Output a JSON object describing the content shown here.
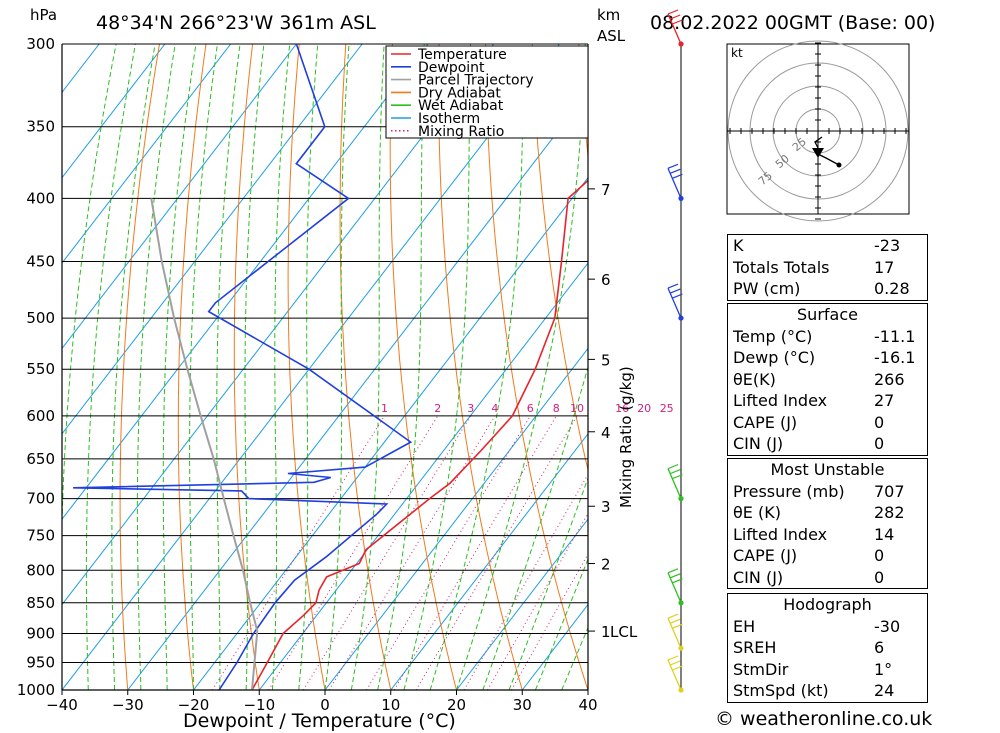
{
  "header": {
    "hpa_label": "hPa",
    "location": "48°34'N 266°23'W 361m ASL",
    "km_label": "km",
    "asl_label": "ASL",
    "datetime": "08.02.2022 00GMT (Base: 00)"
  },
  "chart_data": {
    "type": "line",
    "title": "48°34'N 266°23'W 361m ASL",
    "xlabel": "Dewpoint / Temperature (°C)",
    "ylabel": "hPa",
    "right_axis_label": "Mixing Ratio (g/kg)",
    "xlim": [
      -40,
      40
    ],
    "ylim": [
      1000,
      300
    ],
    "x_ticks": [
      -40,
      -30,
      -20,
      -10,
      0,
      10,
      20,
      30,
      40
    ],
    "pressure_ticks": [
      300,
      350,
      400,
      450,
      500,
      550,
      600,
      650,
      700,
      750,
      800,
      850,
      900,
      950,
      1000
    ],
    "km_ticks": [
      {
        "label": "7",
        "p": 393
      },
      {
        "label": "6",
        "p": 465
      },
      {
        "label": "5",
        "p": 540
      },
      {
        "label": "4",
        "p": 618
      },
      {
        "label": "3",
        "p": 710
      },
      {
        "label": "2",
        "p": 790
      },
      {
        "label": "1",
        "p": 896
      }
    ],
    "lcl_label": "LCL",
    "lcl_p": 896,
    "mixing_ratio_labels": [
      "1",
      "2",
      "3",
      "4",
      "6",
      "8",
      "10",
      "16",
      "20",
      "25"
    ],
    "legend": {
      "placement": "top-right",
      "entries": [
        {
          "name": "Temperature",
          "color": "#e8232a",
          "style": "solid"
        },
        {
          "name": "Dewpoint",
          "color": "#1f3fe0",
          "style": "solid"
        },
        {
          "name": "Parcel Trajectory",
          "color": "#a0a0a0",
          "style": "solid"
        },
        {
          "name": "Dry Adiabat",
          "color": "#f07a1e",
          "style": "solid"
        },
        {
          "name": "Wet Adiabat",
          "color": "#2bbf1f",
          "style": "solid"
        },
        {
          "name": "Isotherm",
          "color": "#1e9ee6",
          "style": "solid"
        },
        {
          "name": "Mixing Ratio",
          "color": "#d0207a",
          "style": "dotted"
        }
      ]
    },
    "series": [
      {
        "name": "Temperature",
        "color": "#e8232a",
        "points": [
          [
            1000,
            -11.1
          ],
          [
            950,
            -12.0
          ],
          [
            900,
            -13.0
          ],
          [
            870,
            -12.0
          ],
          [
            850,
            -11.6
          ],
          [
            830,
            -12.6
          ],
          [
            810,
            -13.0
          ],
          [
            790,
            -9.6
          ],
          [
            770,
            -10.2
          ],
          [
            700,
            -6.5
          ],
          [
            680,
            -5.2
          ],
          [
            640,
            -4.3
          ],
          [
            600,
            -3.6
          ],
          [
            550,
            -5.6
          ],
          [
            500,
            -8.6
          ],
          [
            450,
            -14.2
          ],
          [
            400,
            -20.6
          ],
          [
            385,
            -19.5
          ],
          [
            350,
            -25.0
          ],
          [
            300,
            -33.0
          ]
        ]
      },
      {
        "name": "Dewpoint",
        "color": "#1f3fe0",
        "points": [
          [
            1000,
            -16.1
          ],
          [
            950,
            -16.6
          ],
          [
            900,
            -17.5
          ],
          [
            850,
            -17.8
          ],
          [
            815,
            -17.5
          ],
          [
            780,
            -15.4
          ],
          [
            720,
            -12.7
          ],
          [
            707,
            -12.4
          ],
          [
            700,
            -34.0
          ],
          [
            690,
            -36.0
          ],
          [
            686,
            -62.0
          ],
          [
            679,
            -26.0
          ],
          [
            673,
            -24.0
          ],
          [
            668,
            -31.0
          ],
          [
            660,
            -20.0
          ],
          [
            630,
            -16.0
          ],
          [
            550,
            -40.0
          ],
          [
            494,
            -62.0
          ],
          [
            486,
            -62.0
          ],
          [
            400,
            -54.0
          ],
          [
            375,
            -66.0
          ],
          [
            350,
            -66.0
          ],
          [
            300,
            -80.0
          ]
        ]
      },
      {
        "name": "Parcel Trajectory",
        "color": "#a0a0a0",
        "points": [
          [
            1000,
            -11.1
          ],
          [
            896,
            -17.2
          ],
          [
            850,
            -21.6
          ],
          [
            800,
            -26.5
          ],
          [
            750,
            -32.0
          ],
          [
            700,
            -37.8
          ],
          [
            650,
            -44.0
          ],
          [
            600,
            -51.0
          ],
          [
            550,
            -58.5
          ],
          [
            500,
            -66.5
          ],
          [
            450,
            -75.0
          ],
          [
            400,
            -84.0
          ]
        ]
      }
    ],
    "wind_barbs": [
      {
        "p": 300,
        "color": "#e8232a"
      },
      {
        "p": 400,
        "color": "#1f3fe0"
      },
      {
        "p": 500,
        "color": "#1f3fe0"
      },
      {
        "p": 700,
        "color": "#2bbf1f"
      },
      {
        "p": 850,
        "color": "#2bbf1f"
      },
      {
        "p": 925,
        "color": "#e0d020"
      },
      {
        "p": 1000,
        "color": "#e0d020"
      }
    ],
    "hodograph": {
      "unit_label": "kt",
      "ring_labels": [
        "25",
        "50",
        "75"
      ]
    }
  },
  "indices": {
    "rows": [
      {
        "label": "K",
        "value": "-23"
      },
      {
        "label": "Totals Totals",
        "value": "17"
      },
      {
        "label": "PW (cm)",
        "value": "0.28"
      }
    ]
  },
  "surface": {
    "title": "Surface",
    "rows": [
      {
        "label": "Temp (°C)",
        "value": "-11.1"
      },
      {
        "label": "Dewp (°C)",
        "value": "-16.1"
      },
      {
        "label": "θE(K)",
        "value": "266"
      },
      {
        "label": "Lifted Index",
        "value": "27"
      },
      {
        "label": "CAPE (J)",
        "value": "0"
      },
      {
        "label": "CIN (J)",
        "value": "0"
      }
    ]
  },
  "most_unstable": {
    "title": "Most Unstable",
    "rows": [
      {
        "label": "Pressure (mb)",
        "value": "707"
      },
      {
        "label": "θE (K)",
        "value": "282"
      },
      {
        "label": "Lifted Index",
        "value": "14"
      },
      {
        "label": "CAPE (J)",
        "value": "0"
      },
      {
        "label": "CIN (J)",
        "value": "0"
      }
    ]
  },
  "hodograph_table": {
    "title": "Hodograph",
    "rows": [
      {
        "label": "EH",
        "value": "-30"
      },
      {
        "label": "SREH",
        "value": "6"
      },
      {
        "label": "StmDir",
        "value": "1°"
      },
      {
        "label": "StmSpd (kt)",
        "value": "24"
      }
    ]
  },
  "credit": "© weatheronline.co.uk"
}
